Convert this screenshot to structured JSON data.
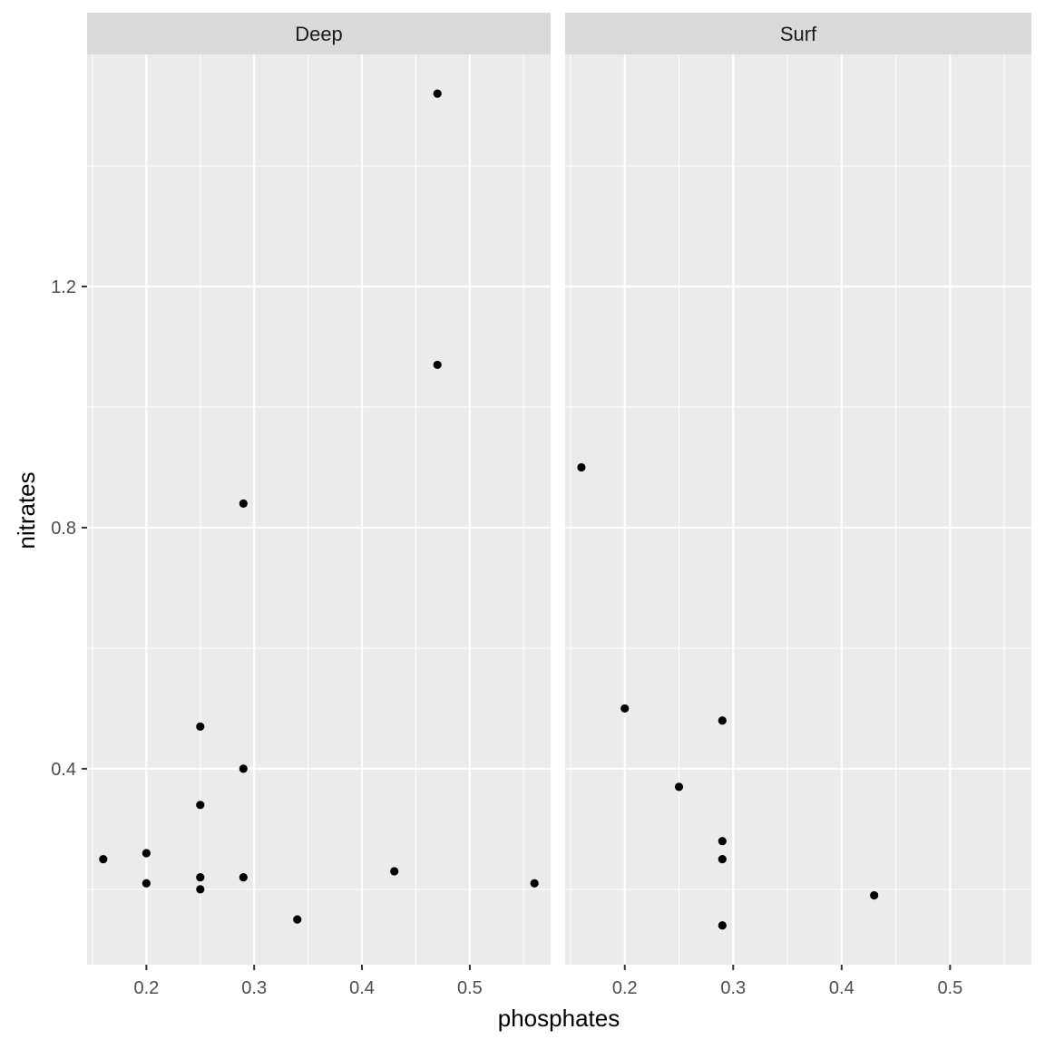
{
  "chart_data": {
    "type": "scatter",
    "xlabel": "phosphates",
    "ylabel": "nitrates",
    "xlim": [
      0.145,
      0.575
    ],
    "ylim": [
      0.075,
      1.585
    ],
    "x_ticks": [
      0.2,
      0.3,
      0.4,
      0.5
    ],
    "x_tick_labels": [
      "0.2",
      "0.3",
      "0.4",
      "0.5"
    ],
    "y_ticks": [
      0.4,
      0.8,
      1.2
    ],
    "y_tick_labels": [
      "0.4",
      "0.8",
      "1.2"
    ],
    "grid": true,
    "panels": [
      {
        "name": "Deep",
        "points": [
          {
            "x": 0.47,
            "y": 1.52
          },
          {
            "x": 0.47,
            "y": 1.07
          },
          {
            "x": 0.29,
            "y": 0.84
          },
          {
            "x": 0.25,
            "y": 0.47
          },
          {
            "x": 0.29,
            "y": 0.4
          },
          {
            "x": 0.25,
            "y": 0.34
          },
          {
            "x": 0.16,
            "y": 0.25
          },
          {
            "x": 0.2,
            "y": 0.26
          },
          {
            "x": 0.2,
            "y": 0.21
          },
          {
            "x": 0.25,
            "y": 0.22
          },
          {
            "x": 0.25,
            "y": 0.2
          },
          {
            "x": 0.29,
            "y": 0.22
          },
          {
            "x": 0.43,
            "y": 0.23
          },
          {
            "x": 0.56,
            "y": 0.21
          },
          {
            "x": 0.34,
            "y": 0.15
          }
        ]
      },
      {
        "name": "Surf",
        "points": [
          {
            "x": 0.16,
            "y": 0.9
          },
          {
            "x": 0.2,
            "y": 0.5
          },
          {
            "x": 0.29,
            "y": 0.48
          },
          {
            "x": 0.25,
            "y": 0.37
          },
          {
            "x": 0.29,
            "y": 0.28
          },
          {
            "x": 0.29,
            "y": 0.25
          },
          {
            "x": 0.43,
            "y": 0.19
          },
          {
            "x": 0.29,
            "y": 0.14
          }
        ]
      }
    ]
  }
}
